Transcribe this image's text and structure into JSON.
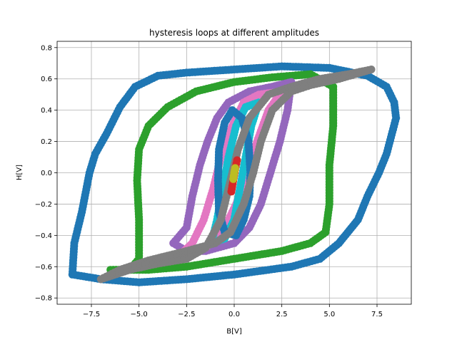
{
  "chart_data": {
    "type": "scatter",
    "title": "hysteresis loops at different amplitudes",
    "xlabel": "B[V]",
    "ylabel": "H[V]",
    "xlim": [
      -9.3,
      9.3
    ],
    "ylim": [
      -0.84,
      0.84
    ],
    "grid": true,
    "xticks": [
      -7.5,
      -5.0,
      -2.5,
      0.0,
      2.5,
      5.0,
      7.5
    ],
    "xtick_labels": [
      "−7.5",
      "−5.0",
      "−2.5",
      "0.0",
      "2.5",
      "5.0",
      "7.5"
    ],
    "yticks": [
      -0.8,
      -0.6,
      -0.4,
      -0.2,
      0.0,
      0.2,
      0.4,
      0.6,
      0.8
    ],
    "ytick_labels": [
      "−0.8",
      "−0.6",
      "−0.4",
      "−0.2",
      "0.0",
      "0.2",
      "0.4",
      "0.6",
      "0.8"
    ],
    "series": [
      {
        "color": "#1f77b4",
        "points": [
          [
            -8.5,
            -0.65
          ],
          [
            -8.4,
            -0.45
          ],
          [
            -8.0,
            -0.25
          ],
          [
            -7.6,
            0.0
          ],
          [
            -7.3,
            0.12
          ],
          [
            -6.7,
            0.25
          ],
          [
            -6.0,
            0.42
          ],
          [
            -5.2,
            0.55
          ],
          [
            -4.0,
            0.62
          ],
          [
            -2.5,
            0.64
          ],
          [
            0.0,
            0.66
          ],
          [
            2.5,
            0.68
          ],
          [
            5.0,
            0.67
          ],
          [
            7.0,
            0.62
          ],
          [
            8.0,
            0.55
          ],
          [
            8.4,
            0.45
          ],
          [
            8.5,
            0.35
          ],
          [
            8.0,
            0.12
          ],
          [
            7.6,
            0.0
          ],
          [
            7.0,
            -0.15
          ],
          [
            6.5,
            -0.3
          ],
          [
            5.5,
            -0.45
          ],
          [
            4.5,
            -0.55
          ],
          [
            3.0,
            -0.6
          ],
          [
            0.0,
            -0.65
          ],
          [
            -2.5,
            -0.68
          ],
          [
            -5.0,
            -0.7
          ],
          [
            -7.0,
            -0.68
          ]
        ]
      },
      {
        "color": "#2ca02c",
        "points": [
          [
            -6.5,
            -0.62
          ],
          [
            -5.5,
            -0.62
          ],
          [
            -5.0,
            -0.55
          ],
          [
            -5.0,
            -0.3
          ],
          [
            -5.1,
            -0.05
          ],
          [
            -5.0,
            0.15
          ],
          [
            -4.5,
            0.3
          ],
          [
            -3.5,
            0.42
          ],
          [
            -2.0,
            0.52
          ],
          [
            0.0,
            0.58
          ],
          [
            2.0,
            0.61
          ],
          [
            4.0,
            0.63
          ],
          [
            5.2,
            0.55
          ],
          [
            5.2,
            0.3
          ],
          [
            5.0,
            0.05
          ],
          [
            5.0,
            -0.2
          ],
          [
            4.8,
            -0.38
          ],
          [
            4.0,
            -0.45
          ],
          [
            2.5,
            -0.5
          ],
          [
            0.0,
            -0.55
          ],
          [
            -2.5,
            -0.6
          ],
          [
            -4.5,
            -0.62
          ]
        ]
      },
      {
        "color": "#9467bd",
        "points": [
          [
            -3.2,
            -0.45
          ],
          [
            -2.5,
            -0.35
          ],
          [
            -2.2,
            -0.15
          ],
          [
            -1.8,
            0.05
          ],
          [
            -1.4,
            0.2
          ],
          [
            -0.9,
            0.35
          ],
          [
            -0.3,
            0.45
          ],
          [
            0.8,
            0.52
          ],
          [
            2.0,
            0.55
          ],
          [
            3.0,
            0.58
          ],
          [
            2.8,
            0.4
          ],
          [
            2.4,
            0.2
          ],
          [
            1.9,
            0.0
          ],
          [
            1.4,
            -0.2
          ],
          [
            0.8,
            -0.35
          ],
          [
            0.0,
            -0.45
          ],
          [
            -1.5,
            -0.5
          ],
          [
            -2.5,
            -0.5
          ]
        ]
      },
      {
        "color": "#e377c2",
        "points": [
          [
            -2.8,
            -0.52
          ],
          [
            -2.2,
            -0.45
          ],
          [
            -1.6,
            -0.3
          ],
          [
            -1.1,
            -0.1
          ],
          [
            -0.7,
            0.1
          ],
          [
            -0.1,
            0.3
          ],
          [
            0.5,
            0.45
          ],
          [
            1.3,
            0.5
          ],
          [
            2.5,
            0.52
          ],
          [
            1.8,
            0.4
          ],
          [
            1.2,
            0.2
          ],
          [
            0.7,
            0.0
          ],
          [
            0.1,
            -0.2
          ],
          [
            -0.5,
            -0.35
          ],
          [
            -1.5,
            -0.48
          ]
        ]
      },
      {
        "color": "#17becf",
        "points": [
          [
            -1.2,
            -0.45
          ],
          [
            -0.9,
            -0.3
          ],
          [
            -0.6,
            -0.1
          ],
          [
            -0.3,
            0.1
          ],
          [
            0.1,
            0.3
          ],
          [
            0.6,
            0.42
          ],
          [
            1.3,
            0.45
          ],
          [
            0.9,
            0.3
          ],
          [
            0.6,
            0.1
          ],
          [
            0.3,
            -0.1
          ],
          [
            0.0,
            -0.3
          ],
          [
            -0.5,
            -0.42
          ]
        ]
      },
      {
        "color": "#1f77b4",
        "points": [
          [
            -0.5,
            -0.38
          ],
          [
            -0.8,
            -0.25
          ],
          [
            -0.85,
            -0.05
          ],
          [
            -0.8,
            0.15
          ],
          [
            -0.5,
            0.32
          ],
          [
            -0.1,
            0.4
          ],
          [
            0.4,
            0.35
          ],
          [
            0.75,
            0.2
          ],
          [
            0.85,
            0.0
          ],
          [
            0.8,
            -0.15
          ],
          [
            0.5,
            -0.3
          ],
          [
            0.1,
            -0.4
          ]
        ]
      },
      {
        "color": "#7f7f7f",
        "points": [
          [
            -7.0,
            -0.68
          ],
          [
            -5.5,
            -0.62
          ],
          [
            -4.0,
            -0.58
          ],
          [
            -2.5,
            -0.55
          ],
          [
            -1.5,
            -0.48
          ],
          [
            -0.7,
            -0.3
          ],
          [
            -0.3,
            -0.1
          ],
          [
            0.2,
            0.15
          ],
          [
            0.8,
            0.35
          ],
          [
            1.8,
            0.5
          ],
          [
            3.0,
            0.55
          ],
          [
            4.5,
            0.6
          ],
          [
            6.0,
            0.63
          ],
          [
            7.2,
            0.66
          ],
          [
            5.5,
            0.6
          ],
          [
            4.0,
            0.56
          ],
          [
            3.0,
            0.52
          ],
          [
            2.0,
            0.4
          ],
          [
            1.4,
            0.2
          ],
          [
            1.0,
            0.0
          ],
          [
            0.5,
            -0.2
          ],
          [
            -0.2,
            -0.38
          ],
          [
            -1.0,
            -0.45
          ],
          [
            -2.5,
            -0.5
          ],
          [
            -4.5,
            -0.56
          ],
          [
            -6.0,
            -0.62
          ]
        ]
      },
      {
        "color": "#d62728",
        "points": [
          [
            -0.15,
            -0.12
          ],
          [
            -0.05,
            -0.05
          ],
          [
            0.05,
            0.02
          ],
          [
            0.15,
            0.08
          ]
        ]
      },
      {
        "color": "#bcbd22",
        "points": [
          [
            -0.05,
            -0.04
          ],
          [
            0.0,
            0.0
          ],
          [
            0.05,
            0.03
          ]
        ]
      }
    ]
  }
}
